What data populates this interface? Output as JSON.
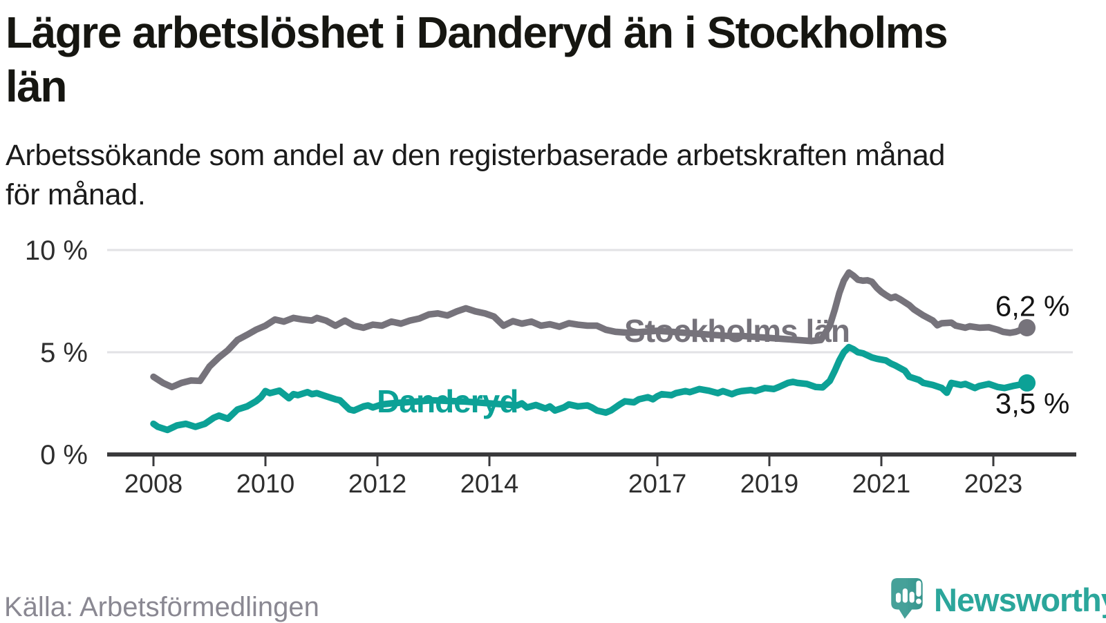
{
  "header": {
    "title": "Lägre arbetslöshet i Danderyd än i Stockholms län",
    "title_lines": [
      "Lägre arbetslöshet i Danderyd än i Stockholms",
      "län"
    ],
    "subtitle": "Arbetssökande som andel av den registerbaserade arbetskraften månad för månad.",
    "subtitle_lines": [
      "Arbetssökande som andel av den registerbaserade arbetskraften månad",
      "för månad."
    ]
  },
  "footer": {
    "source": "Källa: Arbetsförmedlingen",
    "brand": "Newsworthy"
  },
  "colors": {
    "danderyd": "#0ca196",
    "stockholm": "#76737b",
    "grid": "#e2e2e5",
    "axis": "#3a3a3c",
    "tick_label": "#2e2e2e",
    "end_label": "#141414",
    "logo_icon_light": "#46a199",
    "logo_icon_dark": "#33948c",
    "logo_text": "#2ba69b",
    "background": "#ffffff"
  },
  "chart_data": {
    "type": "line",
    "title": "Lägre arbetslöshet i Danderyd än i Stockholms län",
    "subtitle": "Arbetssökande som andel av den registerbaserade arbetskraften månad för månad.",
    "unit": "%",
    "grid": true,
    "xlim": [
      2008,
      2023.6
    ],
    "ylim": [
      0,
      10.5
    ],
    "x_ticks": [
      {
        "t": 2008,
        "label": "2008"
      },
      {
        "t": 2010,
        "label": "2010"
      },
      {
        "t": 2012,
        "label": "2012"
      },
      {
        "t": 2014,
        "label": "2014"
      },
      {
        "t": 2017,
        "label": "2017"
      },
      {
        "t": 2019,
        "label": "2019"
      },
      {
        "t": 2021,
        "label": "2021"
      },
      {
        "t": 2023,
        "label": "2023"
      }
    ],
    "y_ticks": [
      {
        "v": 0,
        "label": "0 %"
      },
      {
        "v": 5,
        "label": "5 %"
      },
      {
        "v": 10,
        "label": "10 %"
      }
    ],
    "series": [
      {
        "name": "Stockholms län",
        "color": "#76737b",
        "end_label": "6,2 %",
        "end_label_side": "above",
        "label_at": [
          2018.42,
          6.08
        ],
        "points": [
          [
            2008.0,
            3.8
          ],
          [
            2008.17,
            3.5
          ],
          [
            2008.33,
            3.3
          ],
          [
            2008.5,
            3.5
          ],
          [
            2008.67,
            3.62
          ],
          [
            2008.83,
            3.6
          ],
          [
            2009.0,
            4.3
          ],
          [
            2009.17,
            4.75
          ],
          [
            2009.33,
            5.1
          ],
          [
            2009.5,
            5.6
          ],
          [
            2009.67,
            5.85
          ],
          [
            2009.83,
            6.1
          ],
          [
            2010.0,
            6.3
          ],
          [
            2010.17,
            6.6
          ],
          [
            2010.33,
            6.5
          ],
          [
            2010.5,
            6.68
          ],
          [
            2010.67,
            6.6
          ],
          [
            2010.83,
            6.55
          ],
          [
            2010.92,
            6.68
          ],
          [
            2011.08,
            6.55
          ],
          [
            2011.25,
            6.3
          ],
          [
            2011.42,
            6.55
          ],
          [
            2011.58,
            6.3
          ],
          [
            2011.75,
            6.2
          ],
          [
            2011.92,
            6.35
          ],
          [
            2012.08,
            6.3
          ],
          [
            2012.25,
            6.5
          ],
          [
            2012.42,
            6.4
          ],
          [
            2012.58,
            6.55
          ],
          [
            2012.75,
            6.65
          ],
          [
            2012.92,
            6.85
          ],
          [
            2013.08,
            6.9
          ],
          [
            2013.25,
            6.8
          ],
          [
            2013.42,
            7.0
          ],
          [
            2013.58,
            7.15
          ],
          [
            2013.75,
            7.0
          ],
          [
            2013.92,
            6.9
          ],
          [
            2014.08,
            6.75
          ],
          [
            2014.25,
            6.3
          ],
          [
            2014.42,
            6.52
          ],
          [
            2014.58,
            6.4
          ],
          [
            2014.75,
            6.5
          ],
          [
            2014.92,
            6.3
          ],
          [
            2015.08,
            6.37
          ],
          [
            2015.25,
            6.25
          ],
          [
            2015.42,
            6.42
          ],
          [
            2015.58,
            6.35
          ],
          [
            2015.75,
            6.3
          ],
          [
            2015.92,
            6.3
          ],
          [
            2016.08,
            6.1
          ],
          [
            2016.25,
            6.0
          ],
          [
            2016.5,
            5.95
          ],
          [
            2016.75,
            6.0
          ],
          [
            2017.0,
            6.05
          ],
          [
            2017.25,
            6.0
          ],
          [
            2017.5,
            5.95
          ],
          [
            2017.75,
            5.9
          ],
          [
            2018.0,
            5.85
          ],
          [
            2018.25,
            5.8
          ],
          [
            2018.5,
            5.8
          ],
          [
            2018.75,
            5.75
          ],
          [
            2019.0,
            5.7
          ],
          [
            2019.25,
            5.65
          ],
          [
            2019.5,
            5.6
          ],
          [
            2019.75,
            5.55
          ],
          [
            2019.92,
            5.6
          ],
          [
            2020.08,
            6.3
          ],
          [
            2020.17,
            7.1
          ],
          [
            2020.25,
            7.9
          ],
          [
            2020.33,
            8.5
          ],
          [
            2020.42,
            8.9
          ],
          [
            2020.5,
            8.75
          ],
          [
            2020.58,
            8.55
          ],
          [
            2020.67,
            8.5
          ],
          [
            2020.75,
            8.52
          ],
          [
            2020.83,
            8.45
          ],
          [
            2020.92,
            8.15
          ],
          [
            2021.0,
            7.95
          ],
          [
            2021.08,
            7.8
          ],
          [
            2021.17,
            7.65
          ],
          [
            2021.25,
            7.72
          ],
          [
            2021.33,
            7.6
          ],
          [
            2021.5,
            7.3
          ],
          [
            2021.58,
            7.1
          ],
          [
            2021.75,
            6.8
          ],
          [
            2021.92,
            6.55
          ],
          [
            2022.0,
            6.32
          ],
          [
            2022.08,
            6.42
          ],
          [
            2022.25,
            6.45
          ],
          [
            2022.33,
            6.3
          ],
          [
            2022.5,
            6.2
          ],
          [
            2022.58,
            6.27
          ],
          [
            2022.75,
            6.2
          ],
          [
            2022.92,
            6.22
          ],
          [
            2023.08,
            6.1
          ],
          [
            2023.17,
            6.0
          ],
          [
            2023.3,
            5.95
          ],
          [
            2023.4,
            6.0
          ],
          [
            2023.5,
            6.1
          ],
          [
            2023.6,
            6.2
          ]
        ]
      },
      {
        "name": "Danderyd",
        "color": "#0ca196",
        "end_label": "3,5 %",
        "end_label_side": "below",
        "label_at": [
          2013.25,
          2.64
        ],
        "points": [
          [
            2008.0,
            1.5
          ],
          [
            2008.08,
            1.35
          ],
          [
            2008.25,
            1.2
          ],
          [
            2008.42,
            1.42
          ],
          [
            2008.58,
            1.5
          ],
          [
            2008.75,
            1.35
          ],
          [
            2008.92,
            1.5
          ],
          [
            2009.08,
            1.8
          ],
          [
            2009.17,
            1.9
          ],
          [
            2009.33,
            1.75
          ],
          [
            2009.5,
            2.2
          ],
          [
            2009.67,
            2.35
          ],
          [
            2009.83,
            2.6
          ],
          [
            2009.92,
            2.8
          ],
          [
            2010.0,
            3.1
          ],
          [
            2010.08,
            3.0
          ],
          [
            2010.25,
            3.12
          ],
          [
            2010.42,
            2.75
          ],
          [
            2010.5,
            2.95
          ],
          [
            2010.58,
            2.9
          ],
          [
            2010.75,
            3.05
          ],
          [
            2010.83,
            2.95
          ],
          [
            2010.92,
            3.0
          ],
          [
            2011.08,
            2.85
          ],
          [
            2011.25,
            2.7
          ],
          [
            2011.33,
            2.65
          ],
          [
            2011.5,
            2.2
          ],
          [
            2011.58,
            2.15
          ],
          [
            2011.75,
            2.35
          ],
          [
            2011.83,
            2.4
          ],
          [
            2011.92,
            2.3
          ],
          [
            2012.08,
            2.45
          ],
          [
            2012.25,
            2.5
          ],
          [
            2012.5,
            2.55
          ],
          [
            2012.75,
            2.6
          ],
          [
            2013.0,
            2.65
          ],
          [
            2013.25,
            2.62
          ],
          [
            2013.5,
            2.6
          ],
          [
            2013.75,
            2.55
          ],
          [
            2014.0,
            2.5
          ],
          [
            2014.25,
            2.45
          ],
          [
            2014.5,
            2.4
          ],
          [
            2014.58,
            2.5
          ],
          [
            2014.67,
            2.3
          ],
          [
            2014.83,
            2.42
          ],
          [
            2015.0,
            2.25
          ],
          [
            2015.08,
            2.35
          ],
          [
            2015.17,
            2.15
          ],
          [
            2015.33,
            2.3
          ],
          [
            2015.42,
            2.45
          ],
          [
            2015.58,
            2.35
          ],
          [
            2015.75,
            2.4
          ],
          [
            2015.83,
            2.3
          ],
          [
            2015.92,
            2.15
          ],
          [
            2016.08,
            2.05
          ],
          [
            2016.17,
            2.15
          ],
          [
            2016.33,
            2.45
          ],
          [
            2016.42,
            2.6
          ],
          [
            2016.58,
            2.55
          ],
          [
            2016.67,
            2.7
          ],
          [
            2016.83,
            2.8
          ],
          [
            2016.92,
            2.7
          ],
          [
            2017.0,
            2.85
          ],
          [
            2017.08,
            2.95
          ],
          [
            2017.25,
            2.9
          ],
          [
            2017.33,
            3.0
          ],
          [
            2017.5,
            3.1
          ],
          [
            2017.58,
            3.05
          ],
          [
            2017.75,
            3.2
          ],
          [
            2017.92,
            3.12
          ],
          [
            2018.08,
            3.0
          ],
          [
            2018.17,
            3.1
          ],
          [
            2018.33,
            2.95
          ],
          [
            2018.42,
            3.05
          ],
          [
            2018.5,
            3.1
          ],
          [
            2018.67,
            3.15
          ],
          [
            2018.75,
            3.1
          ],
          [
            2018.92,
            3.25
          ],
          [
            2019.08,
            3.2
          ],
          [
            2019.17,
            3.3
          ],
          [
            2019.33,
            3.5
          ],
          [
            2019.42,
            3.55
          ],
          [
            2019.5,
            3.5
          ],
          [
            2019.67,
            3.45
          ],
          [
            2019.83,
            3.3
          ],
          [
            2019.95,
            3.28
          ],
          [
            2020.08,
            3.6
          ],
          [
            2020.17,
            4.1
          ],
          [
            2020.25,
            4.6
          ],
          [
            2020.33,
            5.0
          ],
          [
            2020.42,
            5.25
          ],
          [
            2020.5,
            5.15
          ],
          [
            2020.58,
            5.0
          ],
          [
            2020.67,
            4.95
          ],
          [
            2020.75,
            4.85
          ],
          [
            2020.83,
            4.75
          ],
          [
            2020.92,
            4.68
          ],
          [
            2021.08,
            4.6
          ],
          [
            2021.17,
            4.45
          ],
          [
            2021.25,
            4.35
          ],
          [
            2021.42,
            4.1
          ],
          [
            2021.5,
            3.8
          ],
          [
            2021.67,
            3.65
          ],
          [
            2021.75,
            3.5
          ],
          [
            2021.92,
            3.4
          ],
          [
            2022.08,
            3.25
          ],
          [
            2022.17,
            3.02
          ],
          [
            2022.25,
            3.5
          ],
          [
            2022.42,
            3.4
          ],
          [
            2022.5,
            3.45
          ],
          [
            2022.67,
            3.25
          ],
          [
            2022.75,
            3.35
          ],
          [
            2022.92,
            3.45
          ],
          [
            2023.08,
            3.3
          ],
          [
            2023.2,
            3.25
          ],
          [
            2023.35,
            3.35
          ],
          [
            2023.45,
            3.4
          ],
          [
            2023.6,
            3.5
          ]
        ]
      }
    ]
  }
}
